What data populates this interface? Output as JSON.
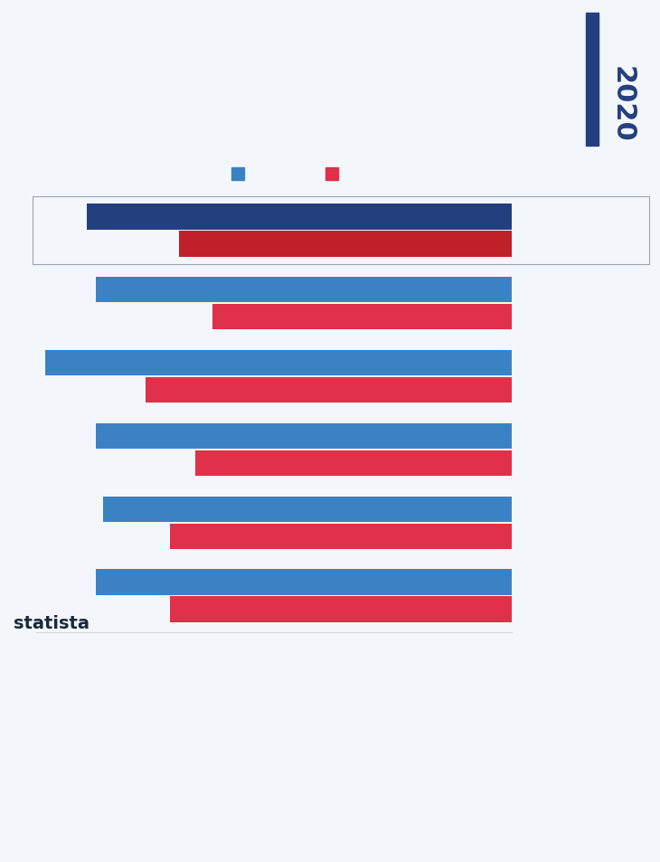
{
  "chart_data": {
    "type": "bar",
    "orientation": "horizontal",
    "title": "2020",
    "source": "statista",
    "categories": [
      null,
      null,
      null,
      null,
      null,
      null
    ],
    "series": [
      {
        "color": "#3b82c4",
        "colors": [
          "#233f7e",
          "#3b82c4",
          "#3b82c4",
          "#3b82c4",
          "#3b82c4",
          "#3b82c4"
        ],
        "values": [
          47.4,
          46.4,
          52.0,
          46.4,
          45.5,
          46.4
        ]
      },
      {
        "color": "#e0304a",
        "colors": [
          "#c0202a",
          "#e0304a",
          "#e0304a",
          "#e0304a",
          "#e0304a",
          "#e0304a"
        ],
        "values": [
          37.1,
          33.4,
          40.8,
          35.3,
          38.1,
          38.1
        ]
      }
    ],
    "xlim": [
      53,
      0
    ],
    "xticks": [],
    "tick_labels": false,
    "grid": false
  }
}
